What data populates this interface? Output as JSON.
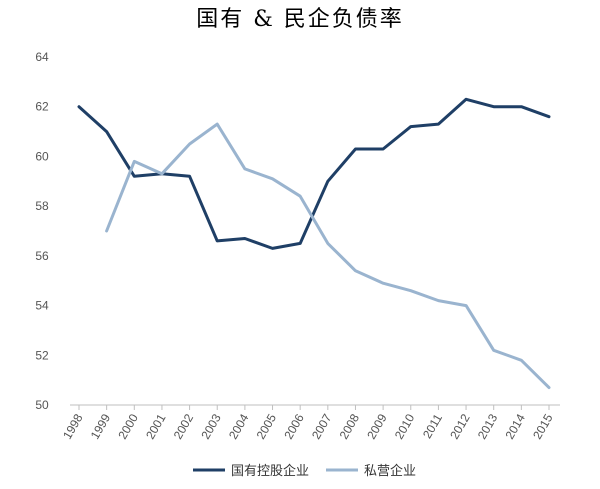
{
  "chart_data": {
    "type": "line",
    "title": "国有 & 民企负债率",
    "x": [
      "1998",
      "1999",
      "2000",
      "2001",
      "2002",
      "2003",
      "2004",
      "2005",
      "2006",
      "2007",
      "2008",
      "2009",
      "2010",
      "2011",
      "2012",
      "2013",
      "2014",
      "2015"
    ],
    "ylim": [
      50,
      64
    ],
    "yticks": [
      "50",
      "52",
      "54",
      "56",
      "58",
      "60",
      "62",
      "64"
    ],
    "legend_position": "bottom",
    "grid": false,
    "series": [
      {
        "name": "国有控股企业",
        "color": "#1f3f66",
        "values": [
          62.0,
          61.0,
          59.2,
          59.3,
          59.2,
          56.6,
          56.7,
          56.3,
          56.5,
          59.0,
          60.3,
          60.3,
          61.2,
          61.3,
          62.3,
          62.0,
          62.0,
          61.6
        ]
      },
      {
        "name": "私营企业",
        "color": "#9ab4cf",
        "values": [
          null,
          57.0,
          59.8,
          59.3,
          60.5,
          61.3,
          59.5,
          59.1,
          58.4,
          56.5,
          55.4,
          54.9,
          54.6,
          54.2,
          54.0,
          52.2,
          51.8,
          50.7
        ]
      }
    ]
  }
}
